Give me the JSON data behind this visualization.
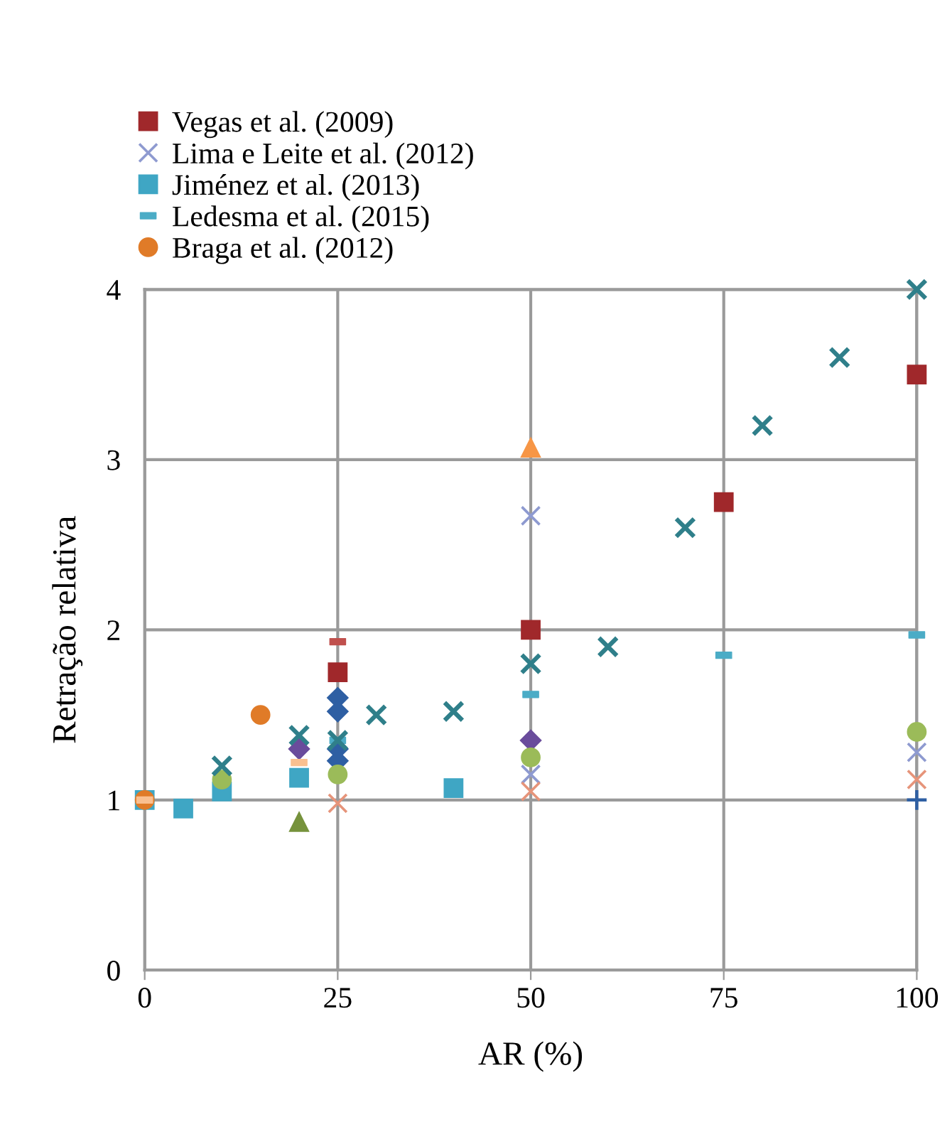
{
  "chart_data": {
    "type": "scatter",
    "xlabel": "AR (%)",
    "ylabel": "Retração relativa",
    "xlim": [
      0,
      100
    ],
    "xticks": [
      0,
      25,
      50,
      75,
      100
    ],
    "ylim": [
      0,
      4
    ],
    "yticks": [
      0,
      1,
      2,
      3,
      4
    ],
    "grid": true,
    "legend": "top left",
    "series": [
      {
        "name": "Vegas et al. (2009)",
        "color": "#a0282b",
        "marker": "square",
        "x": [
          25,
          50,
          75,
          100
        ],
        "values": [
          1.75,
          2.0,
          2.75,
          3.5
        ]
      },
      {
        "name": "Lima e Leite et al. (2012)",
        "color": "#8e9ad0",
        "marker": "cross",
        "x": [
          50,
          50,
          100
        ],
        "values": [
          2.67,
          1.15,
          1.28
        ]
      },
      {
        "name": "Jiménez et al. (2013)",
        "color": "#3fa6c4",
        "marker": "square",
        "x": [
          0,
          5,
          10,
          20,
          40
        ],
        "values": [
          1.0,
          0.95,
          1.05,
          1.13,
          1.07
        ]
      },
      {
        "name": "Ledesma et al. (2015)",
        "color": "#4bacc6",
        "marker": "square",
        "x": [
          25,
          50,
          75,
          100
        ],
        "values": [
          1.35,
          1.62,
          1.85,
          1.97
        ]
      },
      {
        "name": "Braga et al. (2012)",
        "color": "#e07b28",
        "marker": "circle",
        "x": [
          0,
          15
        ],
        "values": [
          1.0,
          1.5
        ]
      },
      {
        "color": "#2f7f8a",
        "marker": "cross",
        "x": [
          10,
          20,
          25,
          30,
          40,
          50,
          60,
          70,
          80,
          90,
          100
        ],
        "values": [
          1.2,
          1.38,
          1.35,
          1.5,
          1.52,
          1.8,
          1.9,
          2.6,
          3.2,
          3.6,
          4.0
        ]
      },
      {
        "color": "#2e5fa3",
        "marker": "diamond",
        "x": [
          25,
          25,
          25,
          25
        ],
        "values": [
          1.6,
          1.52,
          1.3,
          1.23
        ]
      },
      {
        "color": "#6a4c9c",
        "marker": "diamond",
        "x": [
          20,
          50
        ],
        "values": [
          1.3,
          1.35
        ]
      },
      {
        "color": "#9bbb59",
        "marker": "circle",
        "x": [
          10,
          25,
          50,
          100
        ],
        "values": [
          1.12,
          1.15,
          1.25,
          1.4
        ]
      },
      {
        "color": "#76923c",
        "marker": "triangle",
        "x": [
          20
        ],
        "values": [
          0.87
        ]
      },
      {
        "color": "#f79646",
        "marker": "triangle",
        "x": [
          50
        ],
        "values": [
          3.07
        ]
      },
      {
        "color": "#e6947a",
        "marker": "cross",
        "x": [
          25,
          50,
          100
        ],
        "values": [
          0.98,
          1.05,
          1.12
        ]
      },
      {
        "color": "#fac090",
        "marker": "square",
        "x": [
          0,
          20
        ],
        "values": [
          1.0,
          1.22
        ]
      },
      {
        "color": "#c0504d",
        "marker": "square",
        "x": [
          25
        ],
        "values": [
          1.93
        ]
      },
      {
        "color": "#2e5fa3",
        "marker": "plus",
        "x": [
          100
        ],
        "values": [
          1.0
        ]
      }
    ]
  }
}
